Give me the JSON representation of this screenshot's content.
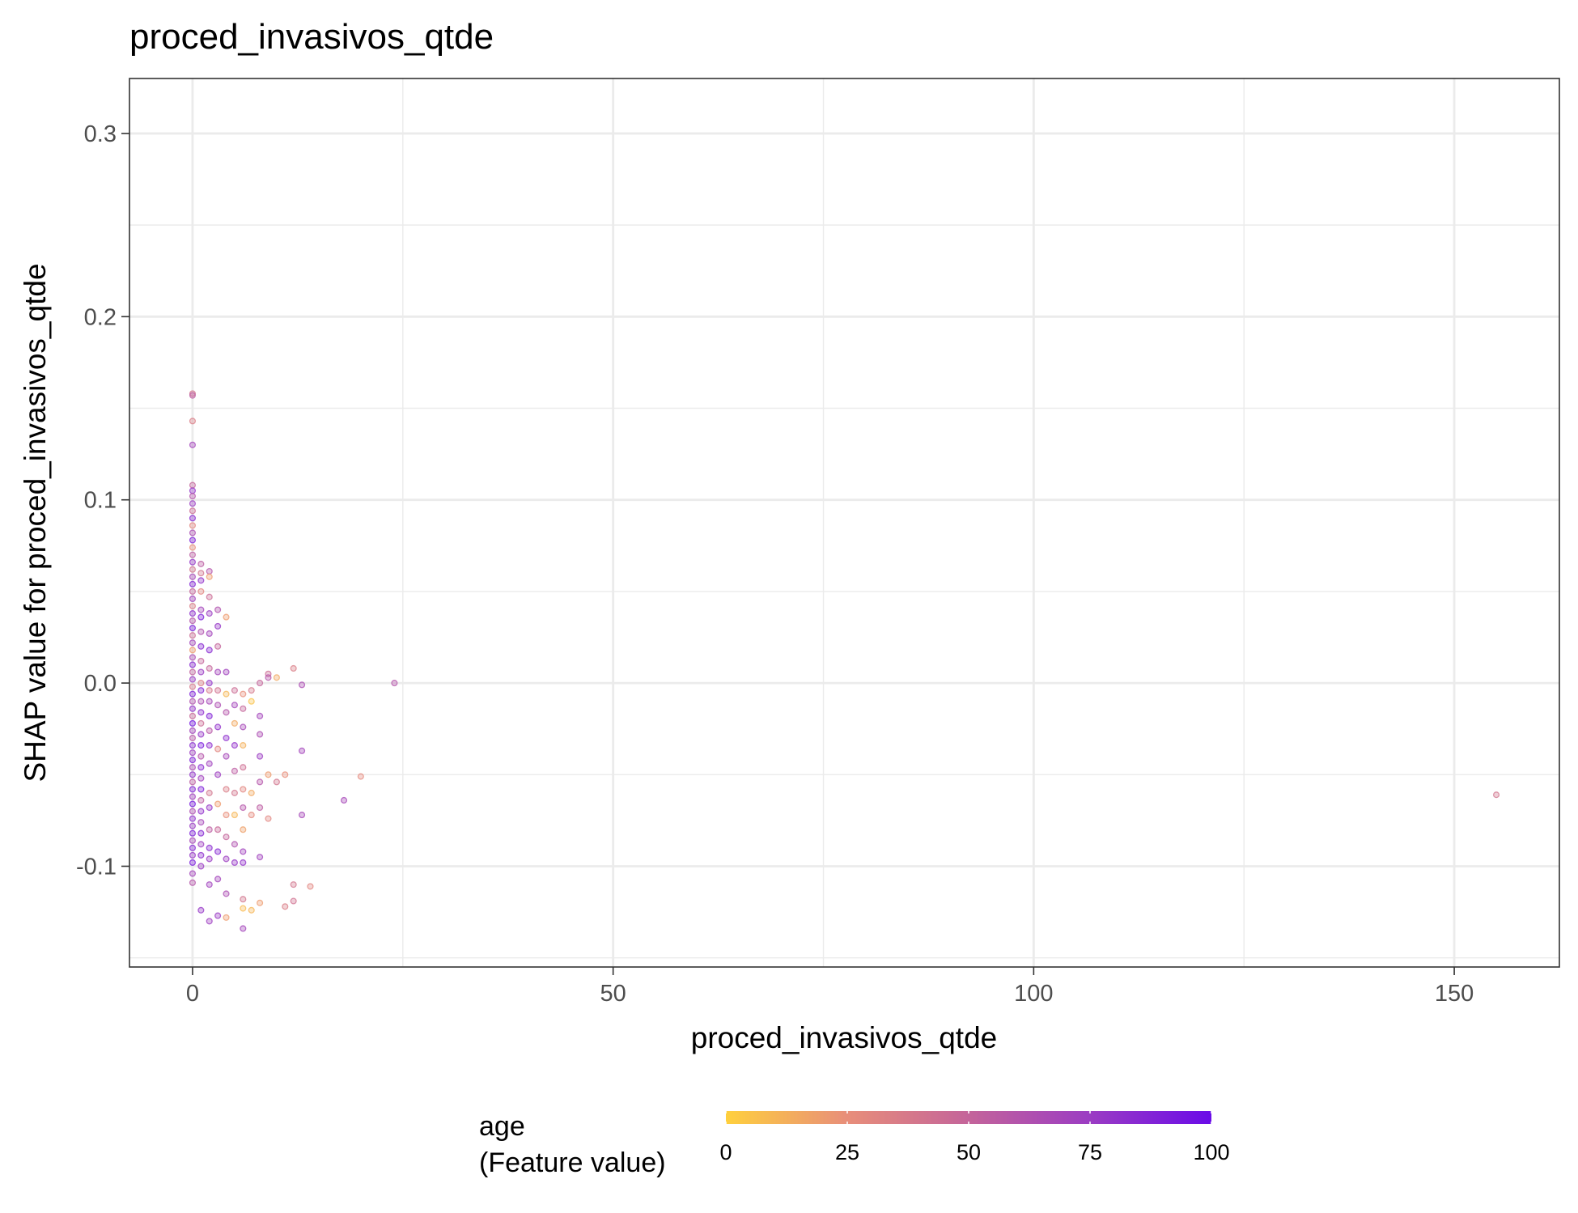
{
  "chart_data": {
    "type": "scatter",
    "title": "proced_invasivos_qtde",
    "xlabel": "proced_invasivos_qtde",
    "ylabel": "SHAP value for proced_invasivos_qtde",
    "xlim": [
      -7.5,
      162.5
    ],
    "ylim": [
      -0.155,
      0.33
    ],
    "x_ticks": [
      0,
      50,
      100,
      150
    ],
    "x_tick_labels": [
      "0",
      "50",
      "100",
      "150"
    ],
    "y_ticks": [
      -0.1,
      0.0,
      0.1,
      0.2,
      0.3
    ],
    "y_tick_labels": [
      "-0.1",
      "0.0",
      "0.1",
      "0.2",
      "0.3"
    ],
    "grid": true,
    "color_scale": {
      "name_line1": "age",
      "name_line2": "(Feature value)",
      "feature": "age",
      "range": [
        0,
        100
      ],
      "ticks": [
        0,
        25,
        50,
        75,
        100
      ],
      "tick_labels": [
        "0",
        "25",
        "50",
        "75",
        "100"
      ],
      "colors": [
        "#FFD03D",
        "#E88E7A",
        "#C4649A",
        "#9B3CC3",
        "#6A0BE8"
      ],
      "legend_position": "bottom"
    },
    "points": [
      {
        "x": 0,
        "y": 0.158,
        "age": 40
      },
      {
        "x": 0,
        "y": 0.157,
        "age": 55
      },
      {
        "x": 0,
        "y": 0.143,
        "age": 35
      },
      {
        "x": 0,
        "y": 0.13,
        "age": 70
      },
      {
        "x": 0,
        "y": 0.108,
        "age": 50
      },
      {
        "x": 0,
        "y": 0.105,
        "age": 80
      },
      {
        "x": 0,
        "y": 0.102,
        "age": 60
      },
      {
        "x": 0,
        "y": 0.098,
        "age": 75
      },
      {
        "x": 0,
        "y": 0.094,
        "age": 45
      },
      {
        "x": 0,
        "y": 0.09,
        "age": 85
      },
      {
        "x": 0,
        "y": 0.086,
        "age": 30
      },
      {
        "x": 0,
        "y": 0.082,
        "age": 65
      },
      {
        "x": 0,
        "y": 0.078,
        "age": 90
      },
      {
        "x": 0,
        "y": 0.074,
        "age": 25
      },
      {
        "x": 0,
        "y": 0.07,
        "age": 55
      },
      {
        "x": 0,
        "y": 0.066,
        "age": 78
      },
      {
        "x": 0,
        "y": 0.062,
        "age": 40
      },
      {
        "x": 0,
        "y": 0.058,
        "age": 68
      },
      {
        "x": 0,
        "y": 0.054,
        "age": 88
      },
      {
        "x": 0,
        "y": 0.05,
        "age": 50
      },
      {
        "x": 0,
        "y": 0.046,
        "age": 72
      },
      {
        "x": 0,
        "y": 0.042,
        "age": 35
      },
      {
        "x": 0,
        "y": 0.038,
        "age": 82
      },
      {
        "x": 0,
        "y": 0.034,
        "age": 60
      },
      {
        "x": 0,
        "y": 0.03,
        "age": 92
      },
      {
        "x": 0,
        "y": 0.026,
        "age": 45
      },
      {
        "x": 0,
        "y": 0.022,
        "age": 70
      },
      {
        "x": 0,
        "y": 0.018,
        "age": 20
      },
      {
        "x": 0,
        "y": 0.014,
        "age": 66
      },
      {
        "x": 0,
        "y": 0.01,
        "age": 85
      },
      {
        "x": 0,
        "y": 0.006,
        "age": 52
      },
      {
        "x": 0,
        "y": 0.002,
        "age": 76
      },
      {
        "x": 0,
        "y": -0.002,
        "age": 38
      },
      {
        "x": 0,
        "y": -0.006,
        "age": 90
      },
      {
        "x": 0,
        "y": -0.01,
        "age": 62
      },
      {
        "x": 0,
        "y": -0.014,
        "age": 80
      },
      {
        "x": 0,
        "y": -0.018,
        "age": 48
      },
      {
        "x": 0,
        "y": -0.022,
        "age": 95
      },
      {
        "x": 0,
        "y": -0.026,
        "age": 70
      },
      {
        "x": 0,
        "y": -0.03,
        "age": 58
      },
      {
        "x": 0,
        "y": -0.034,
        "age": 84
      },
      {
        "x": 0,
        "y": -0.038,
        "age": 74
      },
      {
        "x": 0,
        "y": -0.042,
        "age": 90
      },
      {
        "x": 0,
        "y": -0.046,
        "age": 66
      },
      {
        "x": 0,
        "y": -0.05,
        "age": 80
      },
      {
        "x": 0,
        "y": -0.054,
        "age": 55
      },
      {
        "x": 0,
        "y": -0.058,
        "age": 88
      },
      {
        "x": 0,
        "y": -0.062,
        "age": 72
      },
      {
        "x": 0,
        "y": -0.066,
        "age": 94
      },
      {
        "x": 0,
        "y": -0.07,
        "age": 64
      },
      {
        "x": 0,
        "y": -0.074,
        "age": 82
      },
      {
        "x": 0,
        "y": -0.078,
        "age": 76
      },
      {
        "x": 0,
        "y": -0.082,
        "age": 90
      },
      {
        "x": 0,
        "y": -0.086,
        "age": 68
      },
      {
        "x": 0,
        "y": -0.09,
        "age": 86
      },
      {
        "x": 0,
        "y": -0.094,
        "age": 78
      },
      {
        "x": 0,
        "y": -0.098,
        "age": 92
      },
      {
        "x": 0,
        "y": -0.104,
        "age": 70
      },
      {
        "x": 0,
        "y": -0.109,
        "age": 60
      },
      {
        "x": 1,
        "y": 0.065,
        "age": 55
      },
      {
        "x": 1,
        "y": 0.06,
        "age": 40
      },
      {
        "x": 1,
        "y": 0.056,
        "age": 80
      },
      {
        "x": 1,
        "y": 0.05,
        "age": 30
      },
      {
        "x": 1,
        "y": 0.04,
        "age": 70
      },
      {
        "x": 1,
        "y": 0.036,
        "age": 90
      },
      {
        "x": 1,
        "y": 0.028,
        "age": 62
      },
      {
        "x": 1,
        "y": 0.02,
        "age": 85
      },
      {
        "x": 1,
        "y": 0.012,
        "age": 50
      },
      {
        "x": 1,
        "y": 0.006,
        "age": 75
      },
      {
        "x": 1,
        "y": 0.0,
        "age": 35
      },
      {
        "x": 1,
        "y": -0.004,
        "age": 88
      },
      {
        "x": 1,
        "y": -0.01,
        "age": 65
      },
      {
        "x": 1,
        "y": -0.016,
        "age": 82
      },
      {
        "x": 1,
        "y": -0.022,
        "age": 45
      },
      {
        "x": 1,
        "y": -0.028,
        "age": 78
      },
      {
        "x": 1,
        "y": -0.034,
        "age": 92
      },
      {
        "x": 1,
        "y": -0.04,
        "age": 60
      },
      {
        "x": 1,
        "y": -0.046,
        "age": 84
      },
      {
        "x": 1,
        "y": -0.052,
        "age": 72
      },
      {
        "x": 1,
        "y": -0.058,
        "age": 90
      },
      {
        "x": 1,
        "y": -0.064,
        "age": 55
      },
      {
        "x": 1,
        "y": -0.07,
        "age": 80
      },
      {
        "x": 1,
        "y": -0.076,
        "age": 68
      },
      {
        "x": 1,
        "y": -0.082,
        "age": 86
      },
      {
        "x": 1,
        "y": -0.088,
        "age": 74
      },
      {
        "x": 1,
        "y": -0.094,
        "age": 82
      },
      {
        "x": 1,
        "y": -0.1,
        "age": 76
      },
      {
        "x": 1,
        "y": -0.124,
        "age": 78
      },
      {
        "x": 2,
        "y": 0.061,
        "age": 60
      },
      {
        "x": 2,
        "y": 0.058,
        "age": 20
      },
      {
        "x": 2,
        "y": 0.047,
        "age": 45
      },
      {
        "x": 2,
        "y": 0.038,
        "age": 75
      },
      {
        "x": 2,
        "y": 0.027,
        "age": 70
      },
      {
        "x": 2,
        "y": 0.018,
        "age": 85
      },
      {
        "x": 2,
        "y": 0.008,
        "age": 50
      },
      {
        "x": 2,
        "y": 0.0,
        "age": 80
      },
      {
        "x": 2,
        "y": -0.004,
        "age": 38
      },
      {
        "x": 2,
        "y": -0.01,
        "age": 68
      },
      {
        "x": 2,
        "y": -0.018,
        "age": 88
      },
      {
        "x": 2,
        "y": -0.026,
        "age": 58
      },
      {
        "x": 2,
        "y": -0.034,
        "age": 82
      },
      {
        "x": 2,
        "y": -0.044,
        "age": 72
      },
      {
        "x": 2,
        "y": -0.06,
        "age": 40
      },
      {
        "x": 2,
        "y": -0.068,
        "age": 78
      },
      {
        "x": 2,
        "y": -0.08,
        "age": 55
      },
      {
        "x": 2,
        "y": -0.09,
        "age": 84
      },
      {
        "x": 2,
        "y": -0.096,
        "age": 76
      },
      {
        "x": 2,
        "y": -0.11,
        "age": 72
      },
      {
        "x": 2,
        "y": -0.13,
        "age": 74
      },
      {
        "x": 3,
        "y": 0.04,
        "age": 62
      },
      {
        "x": 3,
        "y": 0.031,
        "age": 78
      },
      {
        "x": 3,
        "y": 0.02,
        "age": 50
      },
      {
        "x": 3,
        "y": 0.006,
        "age": 70
      },
      {
        "x": 3,
        "y": -0.004,
        "age": 42
      },
      {
        "x": 3,
        "y": -0.012,
        "age": 64
      },
      {
        "x": 3,
        "y": -0.024,
        "age": 80
      },
      {
        "x": 3,
        "y": -0.036,
        "age": 30
      },
      {
        "x": 3,
        "y": -0.05,
        "age": 74
      },
      {
        "x": 3,
        "y": -0.066,
        "age": 20
      },
      {
        "x": 3,
        "y": -0.08,
        "age": 48
      },
      {
        "x": 3,
        "y": -0.092,
        "age": 86
      },
      {
        "x": 3,
        "y": -0.107,
        "age": 70
      },
      {
        "x": 3,
        "y": -0.127,
        "age": 76
      },
      {
        "x": 4,
        "y": 0.036,
        "age": 20
      },
      {
        "x": 4,
        "y": 0.006,
        "age": 72
      },
      {
        "x": 4,
        "y": -0.006,
        "age": 10
      },
      {
        "x": 4,
        "y": -0.016,
        "age": 60
      },
      {
        "x": 4,
        "y": -0.03,
        "age": 82
      },
      {
        "x": 4,
        "y": -0.04,
        "age": 68
      },
      {
        "x": 4,
        "y": -0.058,
        "age": 35
      },
      {
        "x": 4,
        "y": -0.072,
        "age": 25
      },
      {
        "x": 4,
        "y": -0.084,
        "age": 50
      },
      {
        "x": 4,
        "y": -0.096,
        "age": 74
      },
      {
        "x": 4,
        "y": -0.115,
        "age": 65
      },
      {
        "x": 4,
        "y": -0.128,
        "age": 20
      },
      {
        "x": 5,
        "y": -0.004,
        "age": 45
      },
      {
        "x": 5,
        "y": -0.012,
        "age": 70
      },
      {
        "x": 5,
        "y": -0.022,
        "age": 15
      },
      {
        "x": 5,
        "y": -0.034,
        "age": 80
      },
      {
        "x": 5,
        "y": -0.048,
        "age": 55
      },
      {
        "x": 5,
        "y": -0.06,
        "age": 40
      },
      {
        "x": 5,
        "y": -0.072,
        "age": 10
      },
      {
        "x": 5,
        "y": -0.088,
        "age": 62
      },
      {
        "x": 5,
        "y": -0.098,
        "age": 78
      },
      {
        "x": 6,
        "y": -0.006,
        "age": 25
      },
      {
        "x": 6,
        "y": -0.014,
        "age": 50
      },
      {
        "x": 6,
        "y": -0.024,
        "age": 68
      },
      {
        "x": 6,
        "y": -0.034,
        "age": 12
      },
      {
        "x": 6,
        "y": -0.046,
        "age": 44
      },
      {
        "x": 6,
        "y": -0.058,
        "age": 30
      },
      {
        "x": 6,
        "y": -0.068,
        "age": 60
      },
      {
        "x": 6,
        "y": -0.08,
        "age": 18
      },
      {
        "x": 6,
        "y": -0.092,
        "age": 72
      },
      {
        "x": 6,
        "y": -0.098,
        "age": 80
      },
      {
        "x": 6,
        "y": -0.118,
        "age": 40
      },
      {
        "x": 6,
        "y": -0.123,
        "age": 8
      },
      {
        "x": 6,
        "y": -0.134,
        "age": 70
      },
      {
        "x": 7,
        "y": -0.004,
        "age": 38
      },
      {
        "x": 7,
        "y": -0.01,
        "age": 5
      },
      {
        "x": 7,
        "y": -0.06,
        "age": 15
      },
      {
        "x": 7,
        "y": -0.072,
        "age": 28
      },
      {
        "x": 7,
        "y": -0.124,
        "age": 10
      },
      {
        "x": 8,
        "y": 0.0,
        "age": 50
      },
      {
        "x": 8,
        "y": -0.018,
        "age": 70
      },
      {
        "x": 8,
        "y": -0.028,
        "age": 65
      },
      {
        "x": 8,
        "y": -0.04,
        "age": 75
      },
      {
        "x": 8,
        "y": -0.054,
        "age": 60
      },
      {
        "x": 8,
        "y": -0.068,
        "age": 55
      },
      {
        "x": 8,
        "y": -0.095,
        "age": 72
      },
      {
        "x": 8,
        "y": -0.12,
        "age": 20
      },
      {
        "x": 9,
        "y": 0.005,
        "age": 45
      },
      {
        "x": 9,
        "y": 0.003,
        "age": 60
      },
      {
        "x": 9,
        "y": -0.05,
        "age": 20
      },
      {
        "x": 9,
        "y": -0.074,
        "age": 30
      },
      {
        "x": 10,
        "y": 0.003,
        "age": 15
      },
      {
        "x": 10,
        "y": -0.054,
        "age": 40
      },
      {
        "x": 11,
        "y": -0.05,
        "age": 25
      },
      {
        "x": 11,
        "y": -0.122,
        "age": 35
      },
      {
        "x": 12,
        "y": 0.008,
        "age": 35
      },
      {
        "x": 12,
        "y": -0.11,
        "age": 40
      },
      {
        "x": 12,
        "y": -0.119,
        "age": 42
      },
      {
        "x": 13,
        "y": -0.001,
        "age": 65
      },
      {
        "x": 13,
        "y": -0.037,
        "age": 70
      },
      {
        "x": 13,
        "y": -0.072,
        "age": 68
      },
      {
        "x": 14,
        "y": -0.111,
        "age": 30
      },
      {
        "x": 18,
        "y": -0.064,
        "age": 68
      },
      {
        "x": 20,
        "y": -0.051,
        "age": 28
      },
      {
        "x": 24,
        "y": 0.0,
        "age": 60
      },
      {
        "x": 155,
        "y": -0.061,
        "age": 40
      }
    ]
  }
}
